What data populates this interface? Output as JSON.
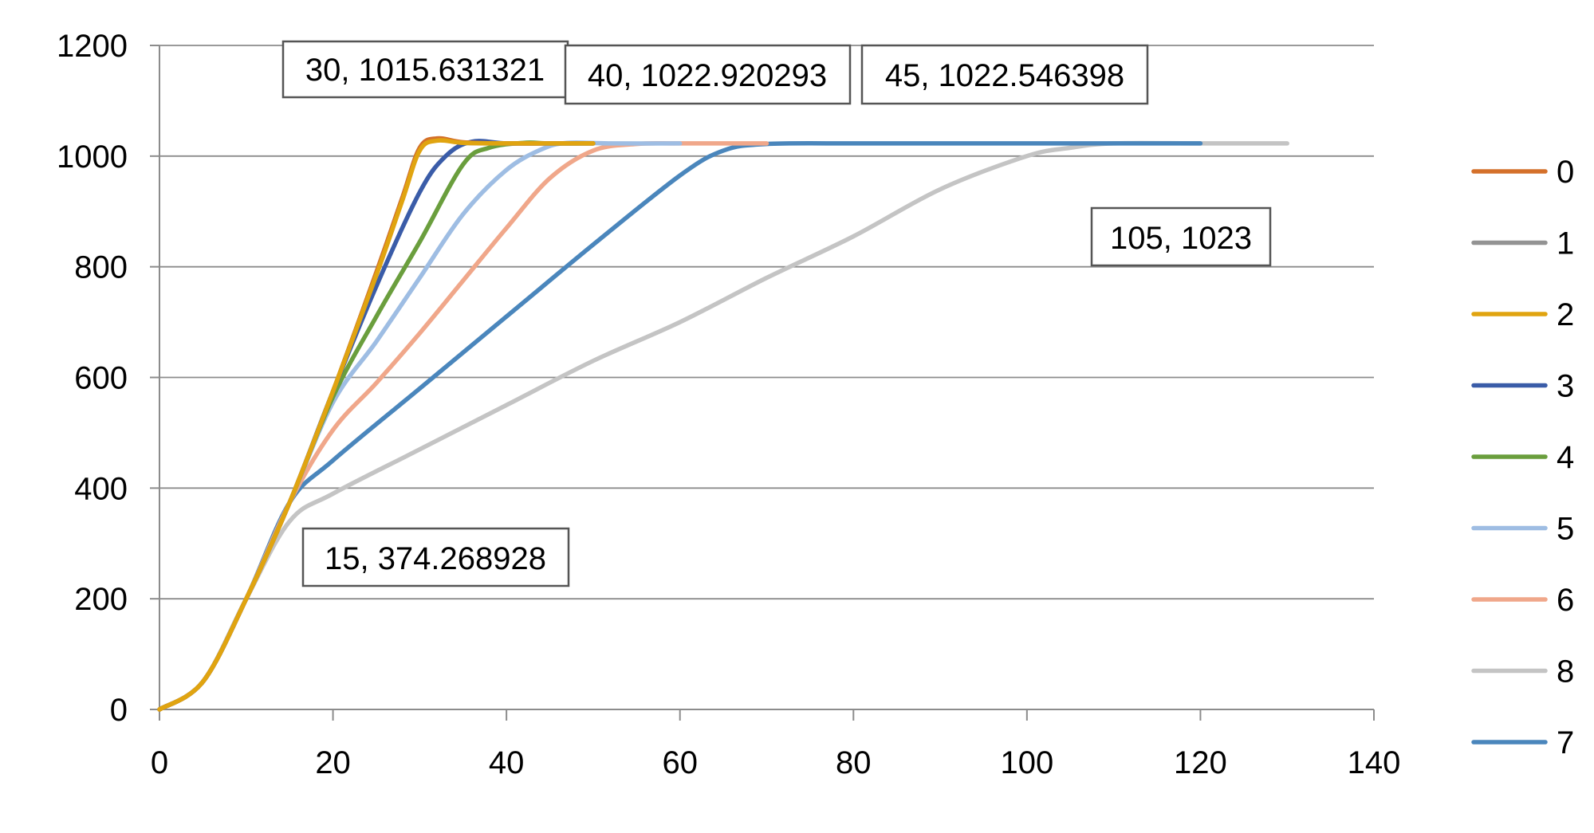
{
  "chart_data": {
    "type": "line",
    "title": "",
    "xlabel": "",
    "ylabel": "",
    "xlim": [
      0,
      140
    ],
    "ylim": [
      0,
      1200
    ],
    "x_ticks": [
      0,
      20,
      40,
      60,
      80,
      100,
      120,
      140
    ],
    "y_ticks": [
      0,
      200,
      400,
      600,
      800,
      1000,
      1200
    ],
    "grid": "horizontal",
    "legend_position": "right",
    "series": [
      {
        "name": "0",
        "color": "#d4702a",
        "points": [
          [
            0,
            0
          ],
          [
            5,
            50
          ],
          [
            10,
            200
          ],
          [
            15,
            374
          ],
          [
            20,
            575
          ],
          [
            25,
            790
          ],
          [
            28,
            925
          ],
          [
            30,
            1015
          ],
          [
            32,
            1032
          ],
          [
            35,
            1025
          ],
          [
            40,
            1023
          ],
          [
            45,
            1023
          ],
          [
            50,
            1023
          ]
        ]
      },
      {
        "name": "1",
        "color": "#939393",
        "points": [
          [
            0,
            0
          ],
          [
            5,
            50
          ],
          [
            10,
            200
          ],
          [
            15,
            374
          ],
          [
            20,
            575
          ],
          [
            25,
            790
          ],
          [
            28,
            925
          ],
          [
            30,
            1015
          ],
          [
            32,
            1030
          ],
          [
            35,
            1024
          ],
          [
            40,
            1023
          ],
          [
            45,
            1023
          ],
          [
            50,
            1023
          ]
        ]
      },
      {
        "name": "2",
        "color": "#e0a410",
        "points": [
          [
            0,
            0
          ],
          [
            5,
            50
          ],
          [
            10,
            200
          ],
          [
            15,
            374
          ],
          [
            20,
            575
          ],
          [
            25,
            785
          ],
          [
            28,
            920
          ],
          [
            30,
            1010
          ],
          [
            32,
            1028
          ],
          [
            35,
            1024
          ],
          [
            40,
            1023
          ],
          [
            45,
            1023
          ],
          [
            50,
            1023
          ]
        ]
      },
      {
        "name": "3",
        "color": "#3a5ca8",
        "points": [
          [
            0,
            0
          ],
          [
            5,
            50
          ],
          [
            10,
            200
          ],
          [
            15,
            374
          ],
          [
            20,
            575
          ],
          [
            25,
            765
          ],
          [
            30,
            935
          ],
          [
            33,
            1000
          ],
          [
            36,
            1026
          ],
          [
            40,
            1023
          ],
          [
            45,
            1023
          ],
          [
            50,
            1023
          ]
        ]
      },
      {
        "name": "4",
        "color": "#6a9e3d",
        "points": [
          [
            0,
            0
          ],
          [
            5,
            50
          ],
          [
            10,
            200
          ],
          [
            15,
            374
          ],
          [
            20,
            565
          ],
          [
            25,
            710
          ],
          [
            30,
            845
          ],
          [
            35,
            985
          ],
          [
            38,
            1015
          ],
          [
            42,
            1024
          ],
          [
            45,
            1023
          ],
          [
            50,
            1023
          ]
        ]
      },
      {
        "name": "5",
        "color": "#9ebde3",
        "points": [
          [
            0,
            0
          ],
          [
            5,
            50
          ],
          [
            10,
            200
          ],
          [
            15,
            374
          ],
          [
            20,
            555
          ],
          [
            25,
            665
          ],
          [
            30,
            780
          ],
          [
            35,
            895
          ],
          [
            40,
            975
          ],
          [
            44,
            1012
          ],
          [
            47,
            1024
          ],
          [
            52,
            1023
          ],
          [
            60,
            1023
          ]
        ]
      },
      {
        "name": "6",
        "color": "#f0a78a",
        "points": [
          [
            0,
            0
          ],
          [
            5,
            50
          ],
          [
            10,
            200
          ],
          [
            15,
            374
          ],
          [
            20,
            505
          ],
          [
            25,
            590
          ],
          [
            30,
            680
          ],
          [
            35,
            775
          ],
          [
            40,
            870
          ],
          [
            45,
            960
          ],
          [
            50,
            1010
          ],
          [
            55,
            1022
          ],
          [
            60,
            1023
          ],
          [
            70,
            1023
          ]
        ]
      },
      {
        "name": "8",
        "color": "#c4c4c4",
        "points": [
          [
            0,
            0
          ],
          [
            5,
            50
          ],
          [
            10,
            200
          ],
          [
            15,
            340
          ],
          [
            20,
            390
          ],
          [
            30,
            470
          ],
          [
            40,
            550
          ],
          [
            50,
            630
          ],
          [
            60,
            700
          ],
          [
            70,
            780
          ],
          [
            80,
            855
          ],
          [
            90,
            940
          ],
          [
            100,
            1000
          ],
          [
            105,
            1015
          ],
          [
            110,
            1023
          ],
          [
            120,
            1023
          ],
          [
            130,
            1023
          ]
        ]
      },
      {
        "name": "7",
        "color": "#4a86bc",
        "points": [
          [
            0,
            0
          ],
          [
            5,
            50
          ],
          [
            10,
            200
          ],
          [
            15,
            374
          ],
          [
            20,
            450
          ],
          [
            30,
            580
          ],
          [
            40,
            710
          ],
          [
            50,
            840
          ],
          [
            60,
            965
          ],
          [
            65,
            1010
          ],
          [
            70,
            1022
          ],
          [
            80,
            1023
          ],
          [
            90,
            1023
          ],
          [
            100,
            1023
          ],
          [
            110,
            1023
          ],
          [
            120,
            1023
          ]
        ]
      }
    ],
    "annotations": [
      {
        "text": "30, 1015.631321"
      },
      {
        "text": "40, 1022.920293"
      },
      {
        "text": "45, 1022.546398"
      },
      {
        "text": "105, 1023"
      },
      {
        "text": "15, 374.268928"
      }
    ]
  }
}
